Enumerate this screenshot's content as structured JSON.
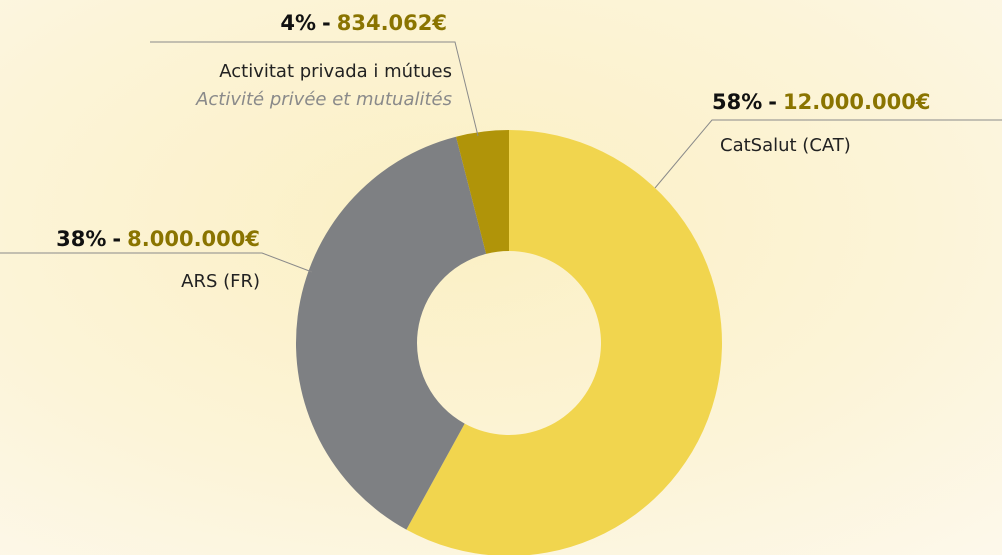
{
  "chart_data": {
    "type": "donut",
    "categories": [
      "CatSalut (CAT)",
      "ARS (FR)",
      "Activitat privada i mútues"
    ],
    "category_notes": [
      null,
      null,
      "Activité privée et mutualités"
    ],
    "values": [
      58,
      38,
      4
    ],
    "value_labels": [
      "58%",
      "38%",
      "4%"
    ],
    "amounts": [
      12000000,
      8000000,
      834062
    ],
    "amount_labels": [
      "12.000.000€",
      "8.000.000€",
      "834.062€"
    ],
    "separator": "-",
    "colors": [
      "#f1d54e",
      "#7e8083",
      "#b09409"
    ]
  }
}
